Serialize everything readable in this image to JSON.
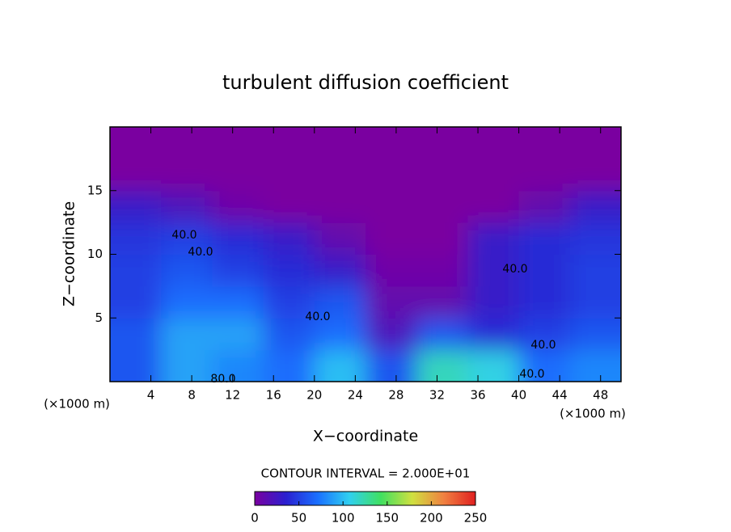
{
  "chart_data": {
    "type": "heatmap",
    "title": "turbulent diffusion coefficient",
    "x_label": "X−coordinate",
    "y_label": "Z−coordinate",
    "x_unit": "(×1000 m)",
    "x_unit_right": "(×1000 m)",
    "note": "CONTOUR INTERVAL = 2.000E+01",
    "annotations": [
      "40.0",
      "40.0",
      "40.0",
      "40.0",
      "40.0",
      "40.0",
      "80.0"
    ],
    "xlim": [
      0,
      50
    ],
    "xticks": [
      4,
      8,
      12,
      16,
      20,
      24,
      28,
      32,
      36,
      40,
      44,
      48
    ],
    "ylim": [
      0,
      20
    ],
    "yticks": [
      5,
      10,
      15
    ],
    "x": [
      2.5,
      7.5,
      12.5,
      17.5,
      22.5,
      27.5,
      32.5,
      37.5,
      42.5,
      47.5
    ],
    "y": [
      1.25,
      3.75,
      6.25,
      8.75,
      11.25,
      13.75,
      16.25,
      18.75
    ],
    "z": [
      [
        60,
        90,
        80,
        70,
        100,
        60,
        120,
        110,
        70,
        80
      ],
      [
        60,
        90,
        90,
        60,
        70,
        20,
        60,
        40,
        50,
        60
      ],
      [
        50,
        70,
        70,
        50,
        60,
        10,
        10,
        30,
        40,
        50
      ],
      [
        50,
        60,
        50,
        40,
        30,
        5,
        5,
        30,
        40,
        50
      ],
      [
        45,
        50,
        40,
        30,
        10,
        0,
        0,
        30,
        40,
        45
      ],
      [
        30,
        20,
        5,
        0,
        0,
        0,
        0,
        0,
        10,
        30
      ],
      [
        0,
        0,
        0,
        0,
        0,
        0,
        0,
        0,
        0,
        0
      ],
      [
        0,
        0,
        0,
        0,
        0,
        0,
        0,
        0,
        0,
        0
      ]
    ],
    "clim": [
      0,
      250
    ],
    "cticks": [
      0,
      50,
      100,
      150,
      200,
      250
    ],
    "colormap": [
      "#7a00a0",
      "#2a20d0",
      "#1a70ff",
      "#30d0f0",
      "#40e060",
      "#d0e040",
      "#f08040",
      "#e02020"
    ]
  }
}
